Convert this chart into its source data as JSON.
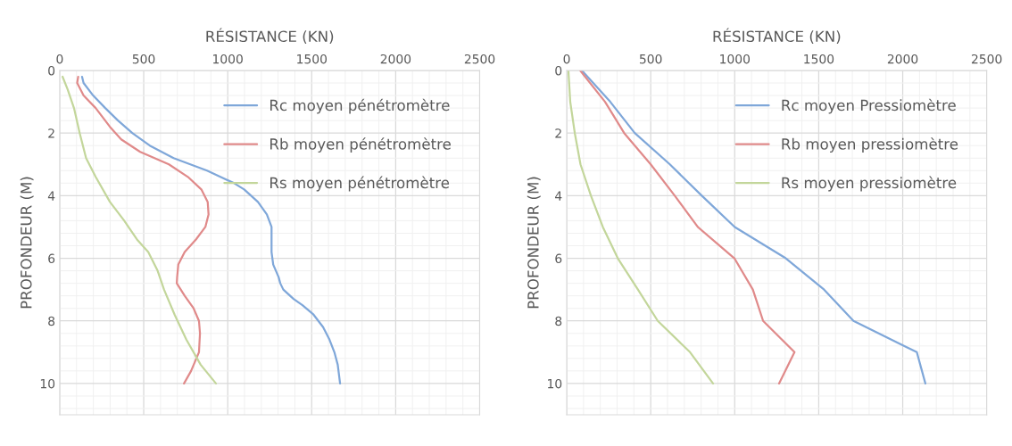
{
  "chart_data": [
    {
      "type": "line",
      "xlabel": "RÉSISTANCE (KN)",
      "ylabel": "PROFONDEUR (M)",
      "xlim": [
        0,
        2500
      ],
      "xticks": [
        0,
        500,
        1000,
        1500,
        2000,
        2500
      ],
      "ylim": [
        11,
        0
      ],
      "yticks": [
        0,
        2,
        4,
        6,
        8,
        10
      ],
      "grid": true,
      "legend": "top right",
      "series": [
        {
          "name": "Rc moyen pénétromètre",
          "color": "#7fa7d9",
          "x": [
            133,
            142,
            199,
            271,
            347,
            432,
            536,
            678,
            877,
            1038,
            1098,
            1180,
            1233,
            1261,
            1261,
            1261,
            1271,
            1303,
            1313,
            1331,
            1392,
            1445,
            1511,
            1568,
            1606,
            1635,
            1655,
            1669
          ],
          "values": [
            0.2,
            0.4,
            0.8,
            1.2,
            1.6,
            2.0,
            2.4,
            2.8,
            3.2,
            3.6,
            3.8,
            4.2,
            4.6,
            5.0,
            5.4,
            5.8,
            6.2,
            6.6,
            6.8,
            7.0,
            7.3,
            7.5,
            7.8,
            8.2,
            8.6,
            9.0,
            9.4,
            10.0
          ]
        },
        {
          "name": "Rb moyen pénétromètre",
          "color": "#e08a8a",
          "x": [
            110,
            104,
            142,
            214,
            299,
            366,
            479,
            650,
            763,
            843,
            881,
            886,
            867,
            811,
            744,
            706,
            699,
            697,
            744,
            797,
            829,
            835,
            829,
            782,
            740
          ],
          "values": [
            0.2,
            0.4,
            0.8,
            1.2,
            1.8,
            2.2,
            2.6,
            3.0,
            3.4,
            3.8,
            4.2,
            4.6,
            5.0,
            5.4,
            5.8,
            6.2,
            6.6,
            6.8,
            7.2,
            7.6,
            8.0,
            8.4,
            9.0,
            9.6,
            10.0
          ]
        },
        {
          "name": "Rs moyen pénétromètre",
          "color": "#c3d69b",
          "x": [
            17,
            47,
            85,
            119,
            157,
            214,
            299,
            384,
            460,
            527,
            583,
            621,
            684,
            754,
            839,
            930
          ],
          "values": [
            0.2,
            0.6,
            1.2,
            2.0,
            2.8,
            3.4,
            4.2,
            4.8,
            5.4,
            5.8,
            6.4,
            7.0,
            7.8,
            8.6,
            9.4,
            10.0
          ]
        }
      ]
    },
    {
      "type": "line",
      "xlabel": "RÉSISTANCE (KN)",
      "ylabel": "PROFONDEUR (M)",
      "xlim": [
        0,
        2500
      ],
      "xticks": [
        0,
        500,
        1000,
        1500,
        2000,
        2500
      ],
      "ylim": [
        11,
        0
      ],
      "yticks": [
        0,
        2,
        4,
        6,
        8,
        10
      ],
      "grid": true,
      "legend": "top right",
      "series": [
        {
          "name": "Rc moyen Pressiomètre",
          "color": "#7fa7d9",
          "x": [
            90,
            259,
            405,
            614,
            804,
            1000,
            1304,
            1532,
            1707,
            2084,
            2135
          ],
          "values": [
            0,
            1,
            2,
            3,
            4,
            5,
            6,
            7,
            8,
            9,
            10
          ]
        },
        {
          "name": "Rb moyen pressiomètre",
          "color": "#e08a8a",
          "x": [
            80,
            228,
            342,
            500,
            643,
            780,
            998,
            1108,
            1169,
            1356,
            1264
          ],
          "values": [
            0,
            1,
            2,
            3,
            4,
            5,
            6,
            7,
            8,
            9,
            10
          ]
        },
        {
          "name": "Rs moyen pressiomètre",
          "color": "#c3d69b",
          "x": [
            10,
            21,
            48,
            82,
            144,
            215,
            304,
            424,
            542,
            734,
            871
          ],
          "values": [
            0,
            1,
            2,
            3,
            4,
            5,
            6,
            7,
            8,
            9,
            10
          ]
        }
      ]
    }
  ]
}
